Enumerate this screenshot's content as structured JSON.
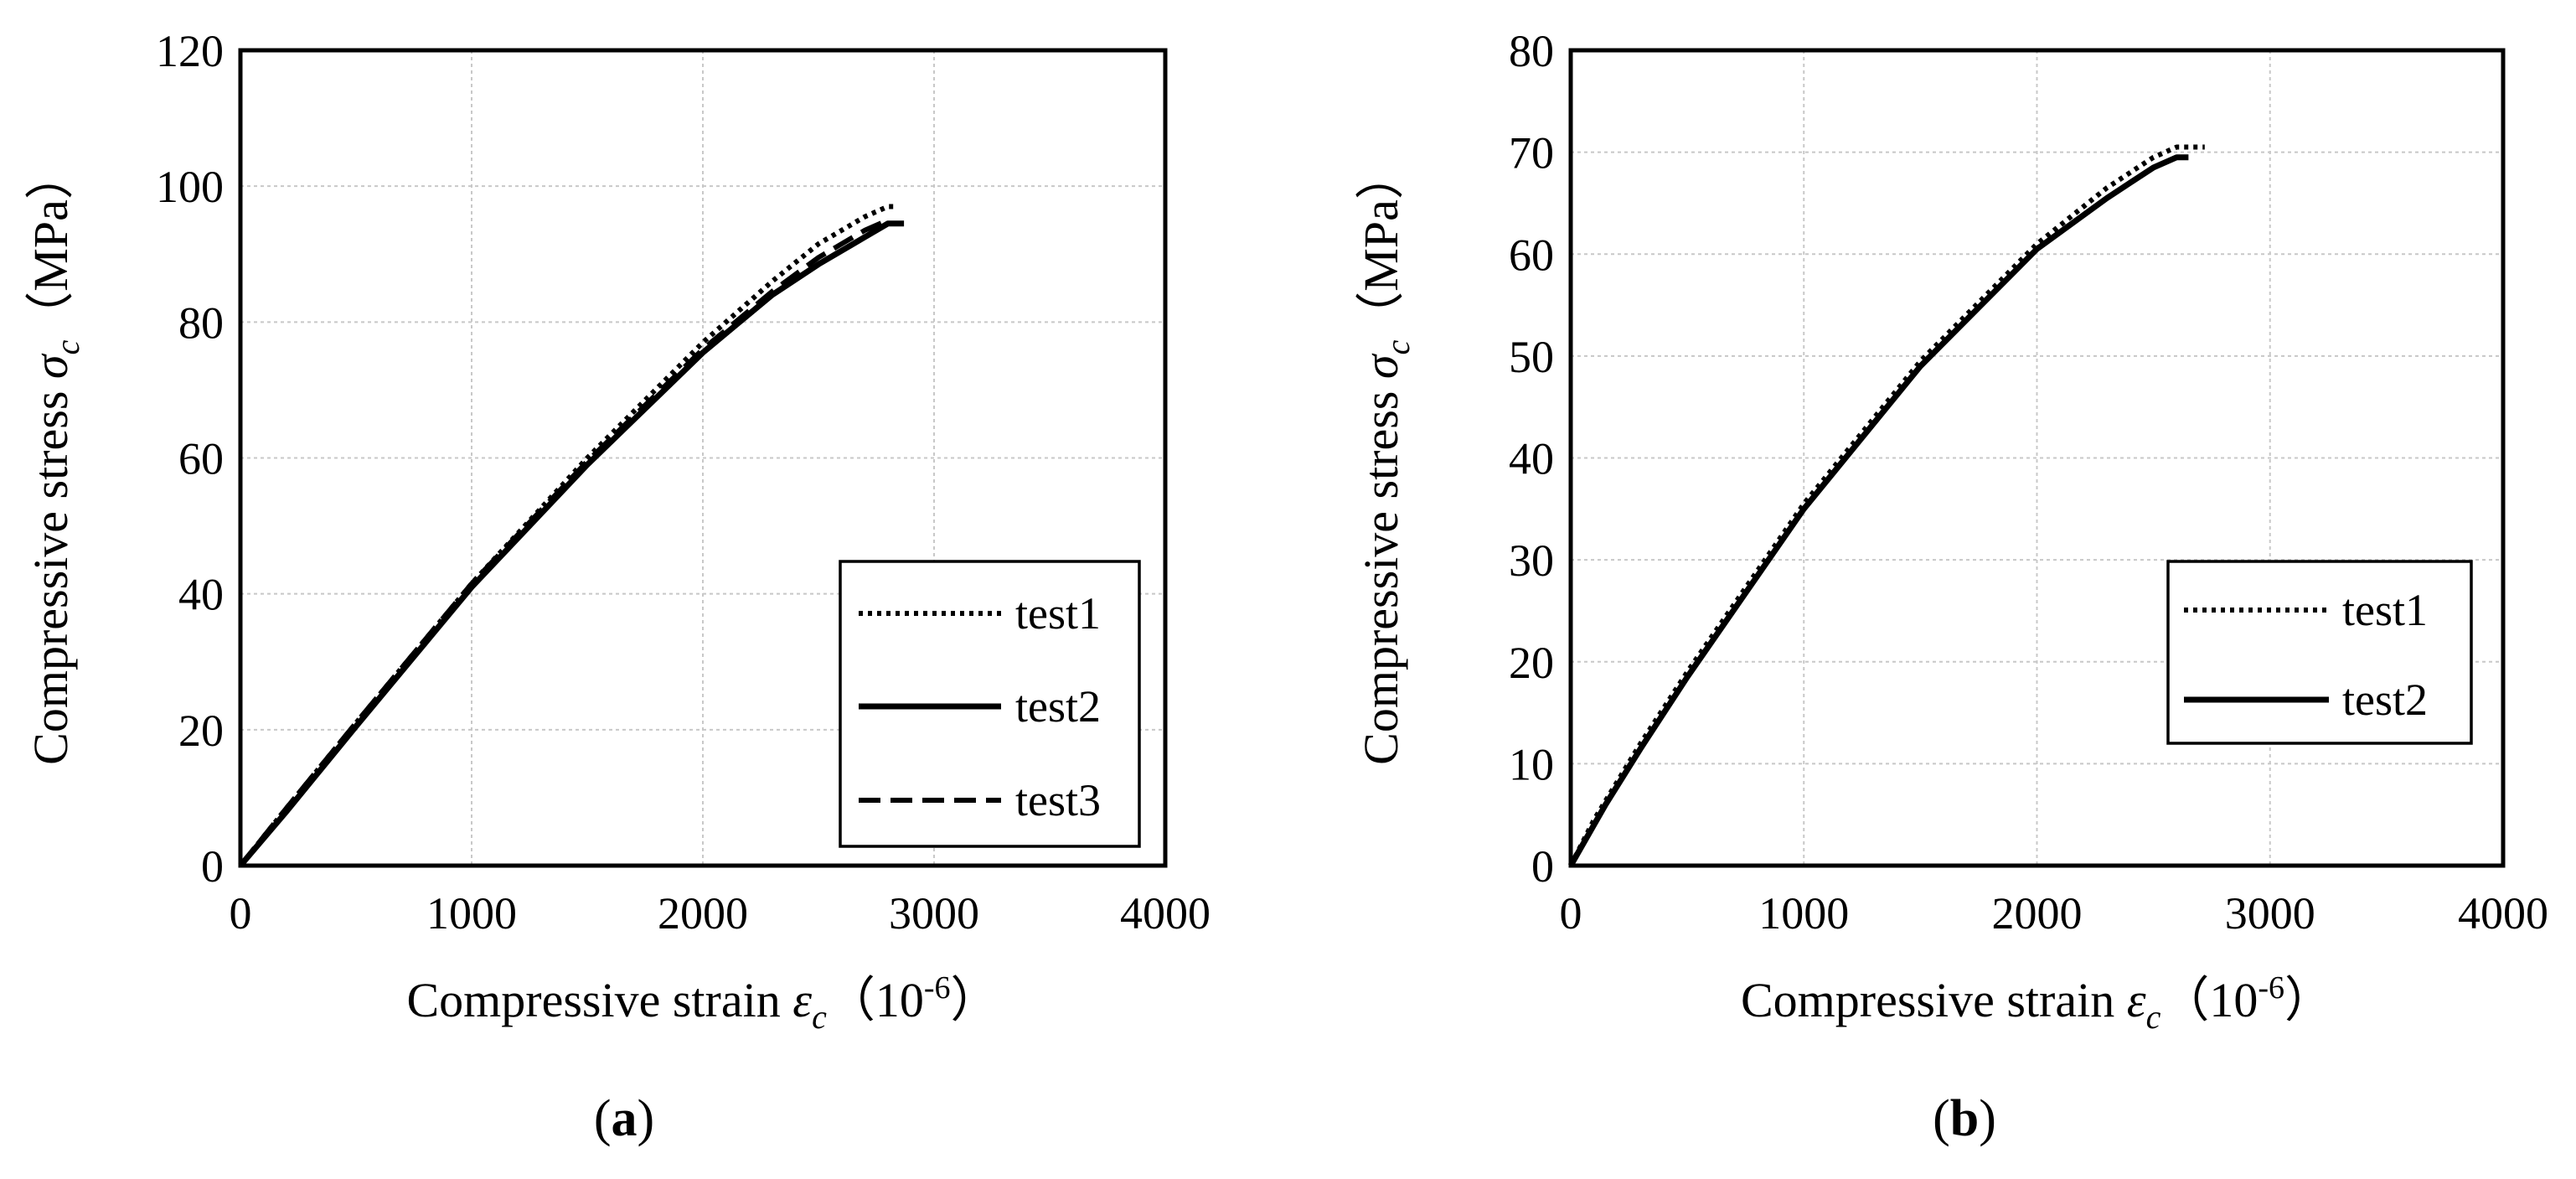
{
  "chart_data": [
    {
      "type": "line",
      "panel_label": "(a)",
      "panel_letter": "a",
      "xlabel": {
        "prefix": "Compressive strain ",
        "sym": "ε",
        "sub": "c",
        "unit_open": "（10",
        "unit_exp": "-6",
        "unit_close": "）"
      },
      "ylabel": {
        "prefix": "Compressive stress ",
        "sym": "σ",
        "sub": "c",
        "unit": "（MPa）"
      },
      "xlim": [
        0,
        4000
      ],
      "ylim": [
        0,
        120
      ],
      "xticks": [
        0,
        1000,
        2000,
        3000,
        4000
      ],
      "yticks": [
        0,
        20,
        40,
        60,
        80,
        100,
        120
      ],
      "grid": true,
      "legend_position": "bottom-right",
      "series": [
        {
          "name": "test1",
          "style": "dotted",
          "x": [
            0,
            200,
            500,
            1000,
            1500,
            2000,
            2300,
            2500,
            2700,
            2800,
            2830
          ],
          "y": [
            0,
            8.5,
            21,
            41.5,
            60,
            77,
            86,
            91.5,
            95.5,
            97,
            97
          ]
        },
        {
          "name": "test2",
          "style": "solid",
          "x": [
            0,
            200,
            500,
            1000,
            1500,
            2000,
            2300,
            2500,
            2700,
            2800,
            2870
          ],
          "y": [
            0,
            8,
            20.5,
            41,
            59,
            75.5,
            84,
            88.5,
            92.5,
            94.5,
            94.5
          ]
        },
        {
          "name": "test3",
          "style": "dashed",
          "x": [
            0,
            200,
            500,
            1000,
            1500,
            2000,
            2300,
            2500,
            2700,
            2800
          ],
          "y": [
            0,
            8.5,
            21,
            41.5,
            59.5,
            76,
            84.5,
            89.5,
            93.5,
            95
          ]
        }
      ]
    },
    {
      "type": "line",
      "panel_label": "(b)",
      "panel_letter": "b",
      "xlabel": {
        "prefix": "Compressive strain ",
        "sym": "ε",
        "sub": "c",
        "unit_open": "（10",
        "unit_exp": "-6",
        "unit_close": "）"
      },
      "ylabel": {
        "prefix": "Compressive stress ",
        "sym": "σ",
        "sub": "c",
        "unit": "（MPa）"
      },
      "xlim": [
        0,
        4000
      ],
      "ylim": [
        0,
        80
      ],
      "xticks": [
        0,
        1000,
        2000,
        3000,
        4000
      ],
      "yticks": [
        0,
        10,
        20,
        30,
        40,
        50,
        60,
        70,
        80
      ],
      "grid": true,
      "legend_position": "bottom-right",
      "series": [
        {
          "name": "test1",
          "style": "dotted",
          "x": [
            0,
            100,
            300,
            500,
            1000,
            1500,
            2000,
            2300,
            2500,
            2600,
            2720
          ],
          "y": [
            0,
            4.5,
            12,
            19,
            35.5,
            49.5,
            61,
            66.5,
            69.5,
            70.5,
            70.5
          ]
        },
        {
          "name": "test2",
          "style": "solid",
          "x": [
            0,
            150,
            300,
            500,
            1000,
            1500,
            2000,
            2300,
            2500,
            2600,
            2650
          ],
          "y": [
            0,
            6,
            11.5,
            18.5,
            35,
            49,
            60.5,
            65.5,
            68.5,
            69.5,
            69.5
          ]
        }
      ]
    }
  ]
}
